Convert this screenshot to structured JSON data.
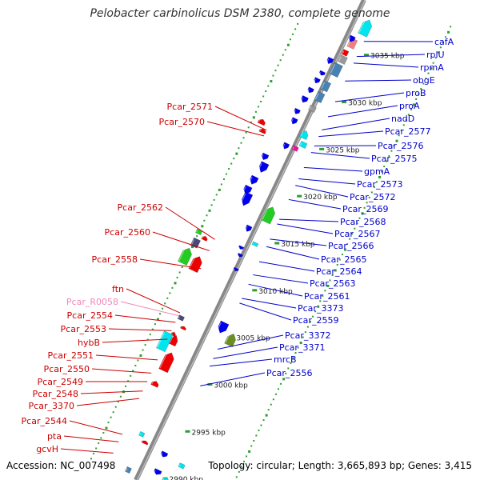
{
  "title": "Pelobacter carbinolicus DSM 2380, complete genome",
  "footer": {
    "accession": "Accession: NC_007498",
    "topology": "Topology: circular; Length: 3,665,893 bp; Genes: 3,415"
  },
  "colors": {
    "forward_gene_label": "#cc0000",
    "reverse_gene_label": "#0000cc",
    "rna_label": "#ee88bb",
    "backbone": "#888888",
    "dots": "#2e9e2e",
    "blue_gene": "#0000ee",
    "red_gene": "#ee0000",
    "cyan_gene": "#00e5ee",
    "green_gene": "#22cc22",
    "olive_gene": "#6b8e23",
    "slate_gene": "#48487a",
    "pink_gene": "#ee1199",
    "salmon_gene": "#f08080",
    "steel_gene": "#4682b4",
    "gray_gene": "#999999"
  },
  "scale_ticks": [
    {
      "label": "2990 kbp",
      "pos": 2990
    },
    {
      "label": "2995 kbp",
      "pos": 2995
    },
    {
      "label": "3000 kbp",
      "pos": 3000
    },
    {
      "label": "3005 kbp",
      "pos": 3005
    },
    {
      "label": "3010 kbp",
      "pos": 3010
    },
    {
      "label": "3015 kbp",
      "pos": 3015
    },
    {
      "label": "3020 kbp",
      "pos": 3020
    },
    {
      "label": "3025 kbp",
      "pos": 3025
    },
    {
      "label": "3030 kbp",
      "pos": 3030
    },
    {
      "label": "3035 kbp",
      "pos": 3035
    }
  ],
  "right_labels": [
    {
      "text": "cafA",
      "pos": 3036.0
    },
    {
      "text": "rplU",
      "pos": 3034.4
    },
    {
      "text": "rpmA",
      "pos": 3033.7
    },
    {
      "text": "obgE",
      "pos": 3031.8
    },
    {
      "text": "proB",
      "pos": 3029.6
    },
    {
      "text": "proA",
      "pos": 3028.0
    },
    {
      "text": "nadD",
      "pos": 3026.6
    },
    {
      "text": "Pcar_2577",
      "pos": 3025.9
    },
    {
      "text": "Pcar_2576",
      "pos": 3024.9
    },
    {
      "text": "Pcar_2575",
      "pos": 3024.2
    },
    {
      "text": "gpmA",
      "pos": 3022.6
    },
    {
      "text": "Pcar_2573",
      "pos": 3021.4
    },
    {
      "text": "Pcar_2572",
      "pos": 3020.7
    },
    {
      "text": "Pcar_2569",
      "pos": 3019.2
    },
    {
      "text": "Pcar_2568",
      "pos": 3017.1
    },
    {
      "text": "Pcar_2567",
      "pos": 3016.6
    },
    {
      "text": "Pcar_2566",
      "pos": 3015.0
    },
    {
      "text": "Pcar_2565",
      "pos": 3014.2
    },
    {
      "text": "Pcar_2564",
      "pos": 3012.6
    },
    {
      "text": "Pcar_2563",
      "pos": 3011.2
    },
    {
      "text": "Pcar_2561",
      "pos": 3010.2
    },
    {
      "text": "Pcar_3373",
      "pos": 3008.7
    },
    {
      "text": "Pcar_2559",
      "pos": 3008.2
    },
    {
      "text": "Pcar_3372",
      "pos": 3003.3
    },
    {
      "text": "Pcar_3371",
      "pos": 3002.3
    },
    {
      "text": "mrcB",
      "pos": 3001.5
    },
    {
      "text": "Pcar_2556",
      "pos": 2999.4
    }
  ],
  "left_labels": [
    {
      "text": "Pcar_2571",
      "pos": 3024.3,
      "kind": "gene"
    },
    {
      "text": "Pcar_2570",
      "pos": 3023.7,
      "kind": "gene"
    },
    {
      "text": "Pcar_2562",
      "pos": 3012.7,
      "kind": "gene"
    },
    {
      "text": "Pcar_2560",
      "pos": 3011.5,
      "kind": "gene"
    },
    {
      "text": "Pcar_2558",
      "pos": 3009.6,
      "kind": "gene"
    },
    {
      "text": "ftn",
      "pos": 3004.9,
      "kind": "gene"
    },
    {
      "text": "Pcar_R0058",
      "pos": 3004.6,
      "kind": "rna"
    },
    {
      "text": "Pcar_2554",
      "pos": 3003.9,
      "kind": "gene"
    },
    {
      "text": "Pcar_2553",
      "pos": 3003.0,
      "kind": "gene"
    },
    {
      "text": "hybB",
      "pos": 3002.1,
      "kind": "gene"
    },
    {
      "text": "Pcar_2551",
      "pos": 2999.9,
      "kind": "gene"
    },
    {
      "text": "Pcar_2550",
      "pos": 2998.5,
      "kind": "gene"
    },
    {
      "text": "Pcar_2549",
      "pos": 2997.6,
      "kind": "gene"
    },
    {
      "text": "Pcar_2548",
      "pos": 2996.6,
      "kind": "gene"
    },
    {
      "text": "Pcar_3370",
      "pos": 2995.8,
      "kind": "gene"
    },
    {
      "text": "Pcar_2544",
      "pos": 2992.0,
      "kind": "gene"
    },
    {
      "text": "pta",
      "pos": 2991.2,
      "kind": "gene"
    },
    {
      "text": "gcvH",
      "pos": 2990.0,
      "kind": "gene"
    }
  ]
}
